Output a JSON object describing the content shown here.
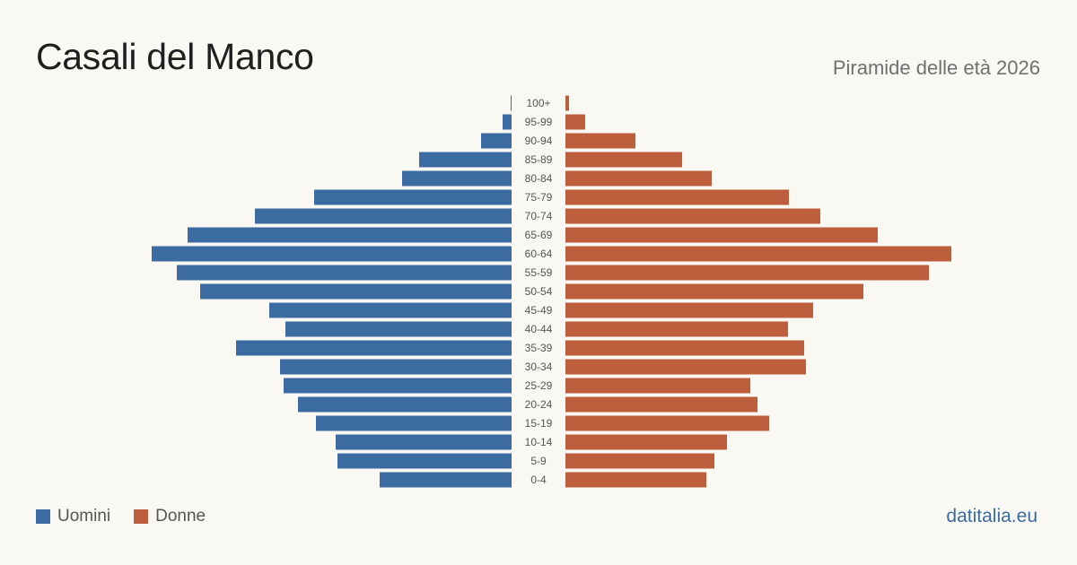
{
  "header": {
    "title": "Casali del Manco",
    "subtitle": "Piramide delle età 2026"
  },
  "legend": {
    "men_label": "Uomini",
    "women_label": "Donne"
  },
  "footer": {
    "source": "datitalia.eu"
  },
  "colors": {
    "men": "#3b6ba0",
    "women": "#bd5e3c",
    "tick_text": "#555555"
  },
  "chart_data": {
    "type": "bar",
    "orientation": "horizontal-population-pyramid",
    "categories": [
      "100+",
      "95-99",
      "90-94",
      "85-89",
      "80-84",
      "75-79",
      "70-74",
      "65-69",
      "60-64",
      "55-59",
      "50-54",
      "45-49",
      "40-44",
      "35-39",
      "30-34",
      "25-29",
      "20-24",
      "15-19",
      "10-14",
      "5-9",
      "0-4"
    ],
    "series": [
      {
        "name": "Uomini",
        "values": [
          1,
          10,
          34,
          103,
          122,
          220,
          286,
          361,
          401,
          373,
          347,
          270,
          252,
          307,
          258,
          254,
          238,
          218,
          196,
          194,
          147
        ]
      },
      {
        "name": "Donne",
        "values": [
          4,
          22,
          78,
          130,
          163,
          249,
          284,
          348,
          430,
          405,
          332,
          276,
          248,
          266,
          268,
          206,
          214,
          227,
          180,
          166,
          157
        ]
      }
    ],
    "xlim": [
      0,
      430
    ],
    "grid": false,
    "legend_position": "bottom-left"
  }
}
